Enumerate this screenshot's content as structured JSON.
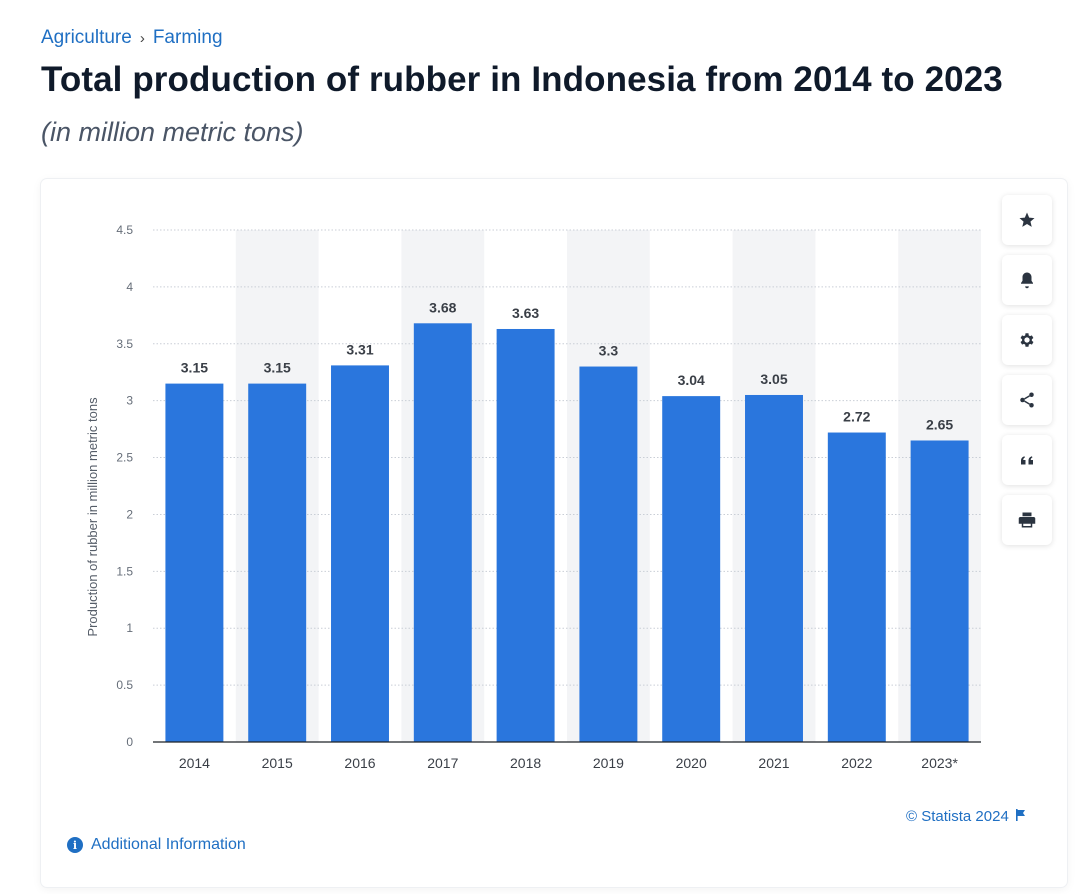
{
  "breadcrumb": {
    "items": [
      "Agriculture",
      "Farming"
    ],
    "separator": "›"
  },
  "title": "Total production of rubber in Indonesia from 2014 to 2023",
  "subtitle": "(in million metric tons)",
  "toolbar": {
    "icons": [
      "star-icon",
      "bell-icon",
      "gear-icon",
      "share-icon",
      "quote-icon",
      "print-icon"
    ]
  },
  "copyright": "© Statista 2024",
  "additional_info": "Additional Information",
  "colors": {
    "bar": "#2a76dd",
    "link": "#1f6fc3",
    "title": "#0f1a2a",
    "band": "#f3f4f6"
  },
  "chart_data": {
    "type": "bar",
    "categories": [
      "2014",
      "2015",
      "2016",
      "2017",
      "2018",
      "2019",
      "2020",
      "2021",
      "2022",
      "2023*"
    ],
    "values": [
      3.15,
      3.15,
      3.31,
      3.68,
      3.63,
      3.3,
      3.04,
      3.05,
      2.72,
      2.65
    ],
    "data_labels": [
      "3.15",
      "3.15",
      "3.31",
      "3.68",
      "3.63",
      "3.3",
      "3.04",
      "3.05",
      "2.72",
      "2.65"
    ],
    "ylabel": "Production of rubber in million metric tons",
    "xlabel": "",
    "ylim": [
      0,
      4.5
    ],
    "yticks": [
      "0",
      "0.5",
      "1",
      "1.5",
      "2",
      "2.5",
      "3",
      "3.5",
      "4",
      "4.5"
    ],
    "grid": true
  }
}
